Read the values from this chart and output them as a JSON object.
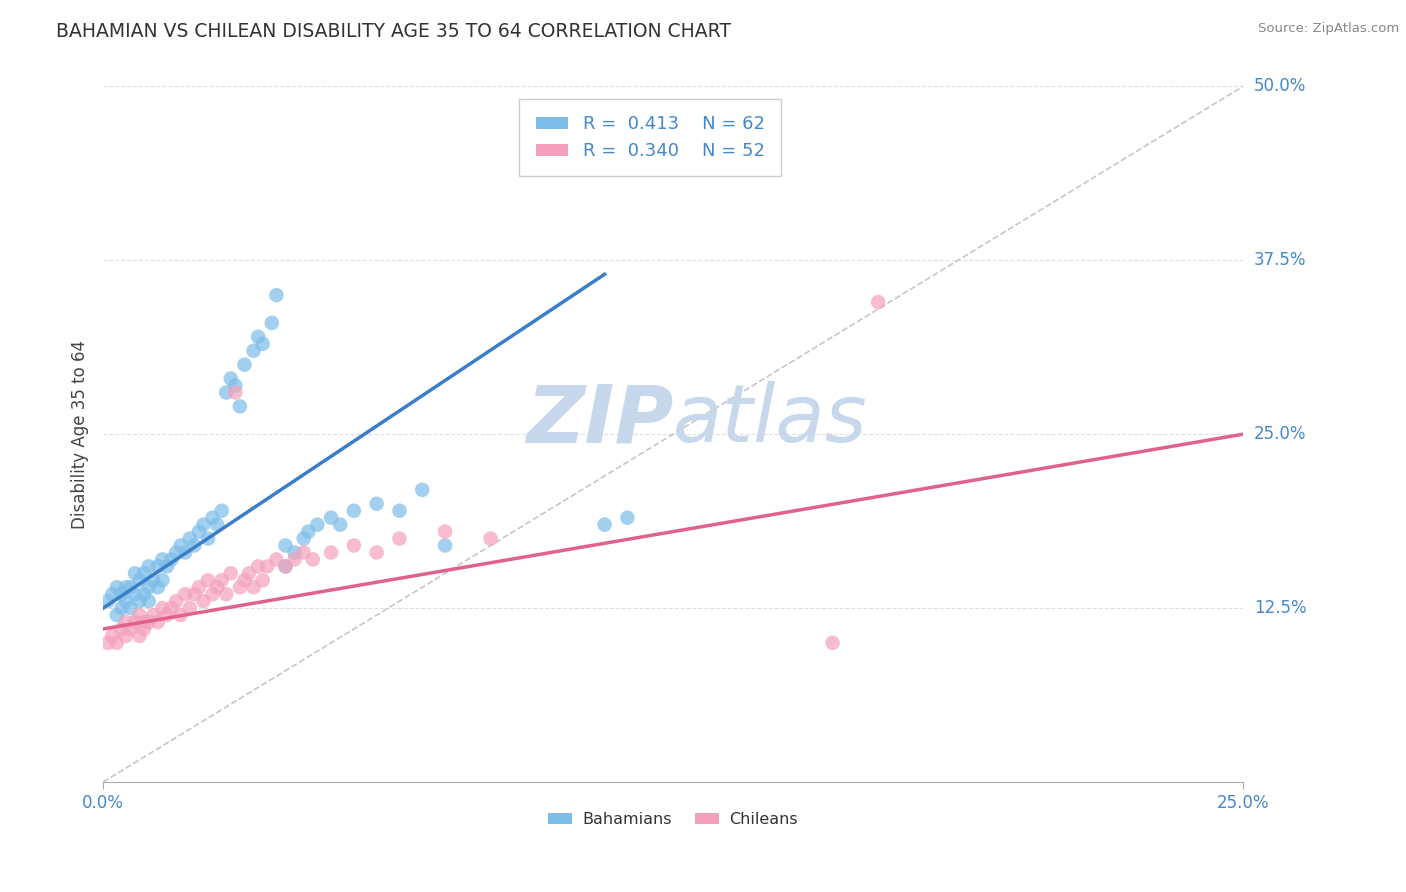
{
  "title": "BAHAMIAN VS CHILEAN DISABILITY AGE 35 TO 64 CORRELATION CHART",
  "source_text": "Source: ZipAtlas.com",
  "xmin": 0.0,
  "xmax": 0.25,
  "ymin": 0.0,
  "ymax": 0.5,
  "ylabel": "Disability Age 35 to 64",
  "legend_label1": "Bahamians",
  "legend_label2": "Chileans",
  "r1": 0.413,
  "n1": 62,
  "r2": 0.34,
  "n2": 52,
  "blue_color": "#7BBDE8",
  "pink_color": "#F4A0BC",
  "blue_line_color": "#3A7EC8",
  "pink_line_color": "#E06090",
  "ref_line_color": "#C0C0C0",
  "title_color": "#333333",
  "axis_label_color": "#4488CC",
  "grid_color": "#E0E0E0",
  "watermark_color": "#C8D8EC",
  "background_color": "#FFFFFF",
  "blue_scatter": [
    [
      0.001,
      0.13
    ],
    [
      0.002,
      0.135
    ],
    [
      0.003,
      0.12
    ],
    [
      0.003,
      0.14
    ],
    [
      0.004,
      0.125
    ],
    [
      0.004,
      0.135
    ],
    [
      0.005,
      0.13
    ],
    [
      0.005,
      0.14
    ],
    [
      0.006,
      0.125
    ],
    [
      0.006,
      0.14
    ],
    [
      0.007,
      0.135
    ],
    [
      0.007,
      0.15
    ],
    [
      0.008,
      0.13
    ],
    [
      0.008,
      0.145
    ],
    [
      0.009,
      0.135
    ],
    [
      0.009,
      0.15
    ],
    [
      0.01,
      0.13
    ],
    [
      0.01,
      0.14
    ],
    [
      0.01,
      0.155
    ],
    [
      0.011,
      0.145
    ],
    [
      0.012,
      0.14
    ],
    [
      0.012,
      0.155
    ],
    [
      0.013,
      0.145
    ],
    [
      0.013,
      0.16
    ],
    [
      0.014,
      0.155
    ],
    [
      0.015,
      0.16
    ],
    [
      0.016,
      0.165
    ],
    [
      0.017,
      0.17
    ],
    [
      0.018,
      0.165
    ],
    [
      0.019,
      0.175
    ],
    [
      0.02,
      0.17
    ],
    [
      0.021,
      0.18
    ],
    [
      0.022,
      0.185
    ],
    [
      0.023,
      0.175
    ],
    [
      0.024,
      0.19
    ],
    [
      0.025,
      0.185
    ],
    [
      0.026,
      0.195
    ],
    [
      0.027,
      0.28
    ],
    [
      0.028,
      0.29
    ],
    [
      0.029,
      0.285
    ],
    [
      0.03,
      0.27
    ],
    [
      0.031,
      0.3
    ],
    [
      0.033,
      0.31
    ],
    [
      0.034,
      0.32
    ],
    [
      0.035,
      0.315
    ],
    [
      0.037,
      0.33
    ],
    [
      0.038,
      0.35
    ],
    [
      0.04,
      0.155
    ],
    [
      0.04,
      0.17
    ],
    [
      0.042,
      0.165
    ],
    [
      0.044,
      0.175
    ],
    [
      0.045,
      0.18
    ],
    [
      0.047,
      0.185
    ],
    [
      0.05,
      0.19
    ],
    [
      0.052,
      0.185
    ],
    [
      0.055,
      0.195
    ],
    [
      0.06,
      0.2
    ],
    [
      0.065,
      0.195
    ],
    [
      0.07,
      0.21
    ],
    [
      0.075,
      0.17
    ],
    [
      0.11,
      0.185
    ],
    [
      0.115,
      0.19
    ]
  ],
  "pink_scatter": [
    [
      0.001,
      0.1
    ],
    [
      0.002,
      0.105
    ],
    [
      0.003,
      0.1
    ],
    [
      0.004,
      0.11
    ],
    [
      0.005,
      0.105
    ],
    [
      0.005,
      0.115
    ],
    [
      0.006,
      0.11
    ],
    [
      0.007,
      0.115
    ],
    [
      0.008,
      0.105
    ],
    [
      0.008,
      0.12
    ],
    [
      0.009,
      0.115
    ],
    [
      0.009,
      0.11
    ],
    [
      0.01,
      0.115
    ],
    [
      0.011,
      0.12
    ],
    [
      0.012,
      0.115
    ],
    [
      0.013,
      0.125
    ],
    [
      0.014,
      0.12
    ],
    [
      0.015,
      0.125
    ],
    [
      0.016,
      0.13
    ],
    [
      0.017,
      0.12
    ],
    [
      0.018,
      0.135
    ],
    [
      0.019,
      0.125
    ],
    [
      0.02,
      0.135
    ],
    [
      0.021,
      0.14
    ],
    [
      0.022,
      0.13
    ],
    [
      0.023,
      0.145
    ],
    [
      0.024,
      0.135
    ],
    [
      0.025,
      0.14
    ],
    [
      0.026,
      0.145
    ],
    [
      0.027,
      0.135
    ],
    [
      0.028,
      0.15
    ],
    [
      0.029,
      0.28
    ],
    [
      0.03,
      0.14
    ],
    [
      0.031,
      0.145
    ],
    [
      0.032,
      0.15
    ],
    [
      0.033,
      0.14
    ],
    [
      0.034,
      0.155
    ],
    [
      0.035,
      0.145
    ],
    [
      0.036,
      0.155
    ],
    [
      0.038,
      0.16
    ],
    [
      0.04,
      0.155
    ],
    [
      0.042,
      0.16
    ],
    [
      0.044,
      0.165
    ],
    [
      0.046,
      0.16
    ],
    [
      0.05,
      0.165
    ],
    [
      0.055,
      0.17
    ],
    [
      0.06,
      0.165
    ],
    [
      0.065,
      0.175
    ],
    [
      0.075,
      0.18
    ],
    [
      0.085,
      0.175
    ],
    [
      0.17,
      0.345
    ],
    [
      0.16,
      0.1
    ]
  ],
  "blue_trend_x": [
    0.0,
    0.11
  ],
  "blue_trend_y": [
    0.125,
    0.365
  ],
  "pink_trend_x": [
    0.0,
    0.25
  ],
  "pink_trend_y": [
    0.11,
    0.25
  ],
  "ref_line_x": [
    0.0,
    0.25
  ],
  "ref_line_y": [
    0.0,
    0.5
  ],
  "ytick_vals": [
    0.125,
    0.25,
    0.375,
    0.5
  ],
  "xtick_bottom": [
    0.0,
    0.25
  ]
}
